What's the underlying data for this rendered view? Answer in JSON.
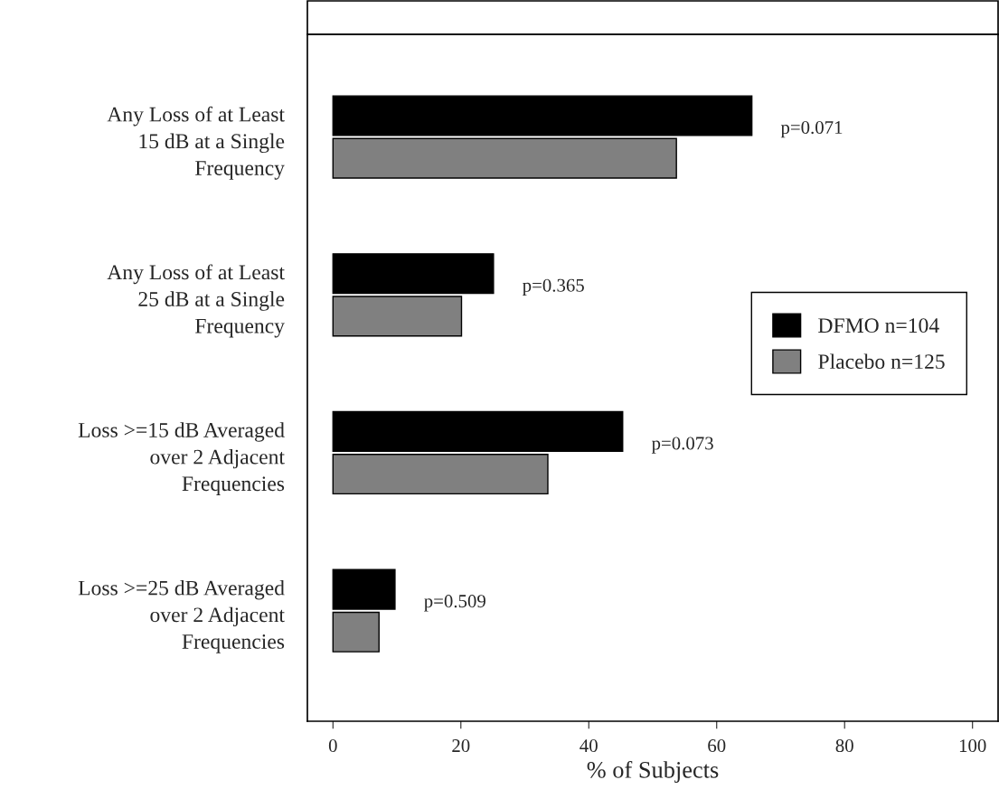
{
  "chart_data": {
    "type": "bar",
    "orientation": "horizontal",
    "xlabel": "% of Subjects",
    "categories": [
      "Any Loss of at Least\n15 dB at a Single\nFrequency",
      "Any Loss of at Least\n25 dB at a Single\nFrequency",
      "Loss >=15 dB Averaged\nover 2 Adjacent\nFrequencies",
      "Loss >=25 dB Averaged\nover 2 Adjacent\nFrequencies"
    ],
    "series": [
      {
        "name": "DFMO n=104",
        "color": "#000000",
        "values": [
          65.5,
          25.1,
          45.3,
          9.7
        ]
      },
      {
        "name": "Placebo n=125",
        "color": "#808080",
        "values": [
          53.7,
          20.1,
          33.6,
          7.2
        ]
      }
    ],
    "xlim": [
      -4,
      104
    ],
    "xticks": [
      0,
      20,
      40,
      60,
      80,
      100
    ],
    "grid": false,
    "legend": "right",
    "annotations": [
      "p=0.071",
      "p=0.365",
      "p=0.073",
      "p=0.509"
    ]
  }
}
